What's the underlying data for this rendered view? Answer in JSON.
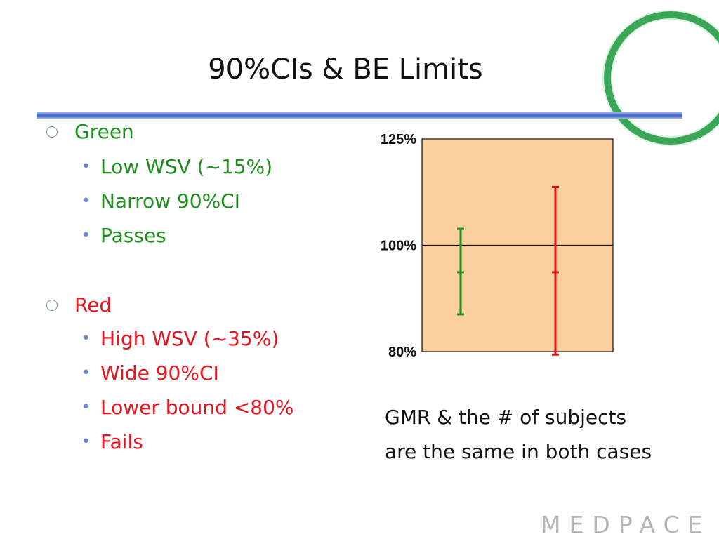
{
  "slide": {
    "title": "90%CIs & BE Limits"
  },
  "bullets": {
    "green": {
      "marker": "○",
      "label": "Green",
      "items": [
        "Low WSV (~15%)",
        "Narrow 90%CI",
        "Passes"
      ]
    },
    "red": {
      "marker": "○",
      "label": "Red",
      "items": [
        "High WSV (~35%)",
        "Wide 90%CI",
        "Lower bound <80%",
        "Fails"
      ]
    },
    "sub_marker": "•"
  },
  "chart_data": {
    "type": "errorbar",
    "scale": "log",
    "ylim": [
      80,
      125
    ],
    "yticks": [
      {
        "value": 125,
        "label": "125%"
      },
      {
        "value": 100,
        "label": "100%"
      },
      {
        "value": 80,
        "label": "80%"
      }
    ],
    "reference_line": 100,
    "background_color": "#fbcf9e",
    "series": [
      {
        "color": "#1e8f1e",
        "point": 94.5,
        "lower": 86.5,
        "upper": 103.5
      },
      {
        "color": "#e8131c",
        "point": 94.5,
        "lower": 79.5,
        "upper": 113.0
      }
    ]
  },
  "chart_note": {
    "line1": "GMR & the # of subjects",
    "line2": "are the same in both cases"
  },
  "logo": {
    "text": "MEDPACE"
  }
}
